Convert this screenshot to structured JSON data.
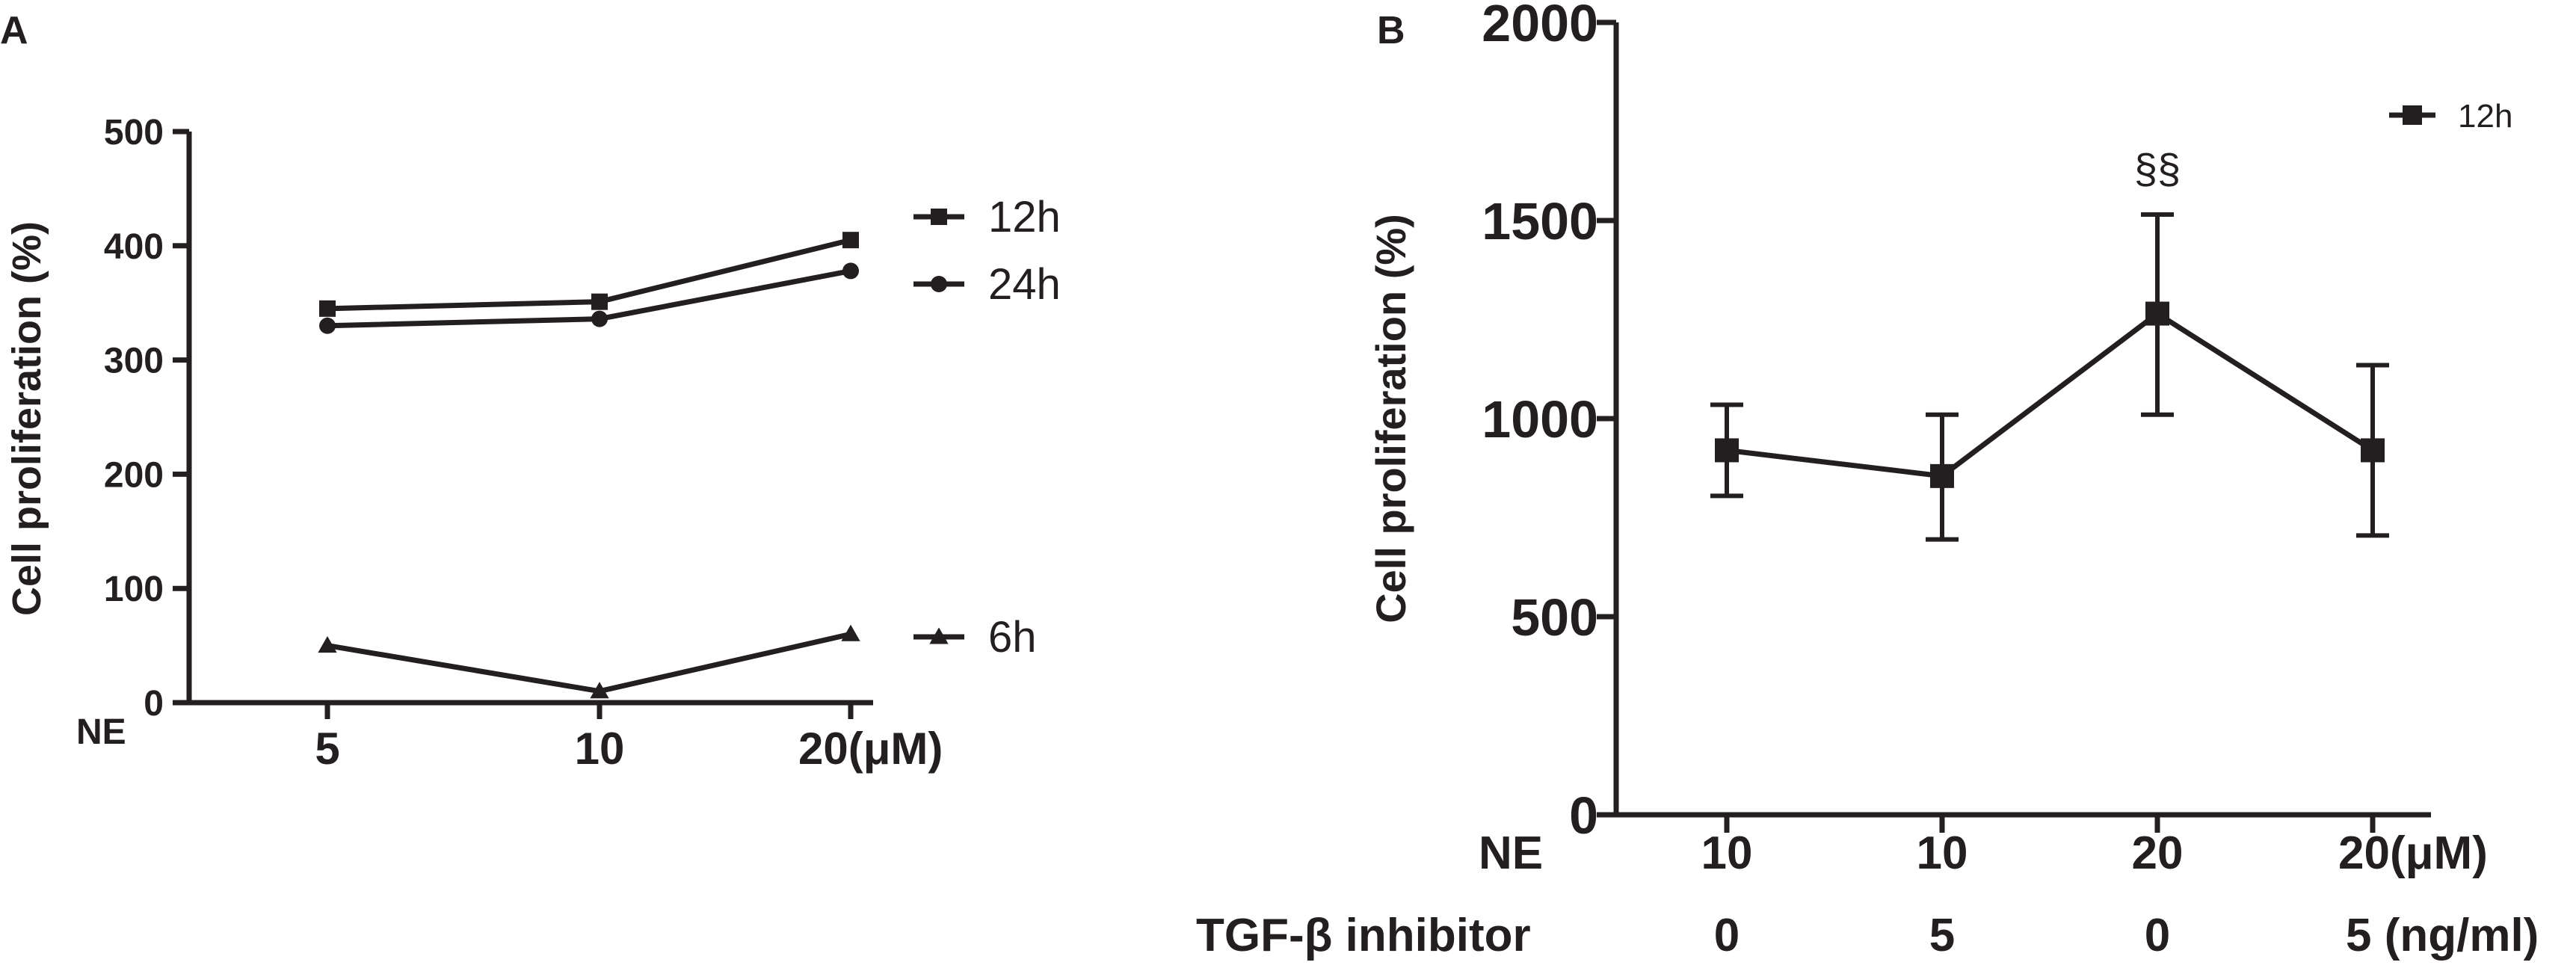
{
  "chart_data": [
    {
      "panel": "A",
      "type": "line",
      "ylabel": "Cell proliferation (%)",
      "ylim": [
        0,
        500
      ],
      "yticks": [
        "0",
        "100",
        "200",
        "300",
        "400",
        "500"
      ],
      "x_row_label": "NE",
      "categories": [
        "5",
        "10",
        "20(μM)"
      ],
      "series": [
        {
          "name": "12h",
          "marker": "square",
          "values": [
            345,
            351,
            405
          ]
        },
        {
          "name": "24h",
          "marker": "circle",
          "values": [
            330,
            336,
            378
          ]
        },
        {
          "name": "6h",
          "marker": "triangle",
          "values": [
            50,
            10,
            60
          ]
        }
      ]
    },
    {
      "panel": "B",
      "type": "line",
      "ylabel": "Cell proliferation (%)",
      "ylim": [
        0,
        2000
      ],
      "yticks": [
        "0",
        "500",
        "1000",
        "1500",
        "2000"
      ],
      "row_labels": [
        "NE",
        "TGF-β inhibitor"
      ],
      "categories": [
        {
          "ne": "10",
          "tgf": "0"
        },
        {
          "ne": "10",
          "tgf": "5"
        },
        {
          "ne": "20",
          "tgf": "0"
        },
        {
          "ne": "20(μM)",
          "tgf": "5 (ng/ml)"
        }
      ],
      "series": [
        {
          "name": "12h",
          "marker": "square",
          "values": [
            920,
            855,
            1265,
            920
          ],
          "error_low": [
            805,
            695,
            1010,
            705
          ],
          "error_high": [
            1035,
            1010,
            1515,
            1135
          ]
        }
      ],
      "annotations": [
        {
          "text": "§§",
          "category_index": 2
        }
      ]
    }
  ]
}
